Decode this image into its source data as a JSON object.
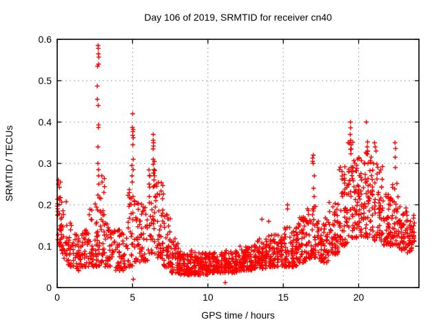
{
  "page": {
    "background": "#ffffff"
  },
  "chart_data": {
    "type": "scatter",
    "title": "Day 106 of 2019, SRMTID for receiver cn40",
    "xlabel": "GPS time / hours",
    "ylabel": "SRMTID / TECUs",
    "xlim": [
      0,
      24
    ],
    "ylim": [
      0,
      0.6
    ],
    "xticks": [
      {
        "v": 0,
        "label": "0"
      },
      {
        "v": 5,
        "label": "5"
      },
      {
        "v": 10,
        "label": "10"
      },
      {
        "v": 15,
        "label": "15"
      },
      {
        "v": 20,
        "label": "20"
      }
    ],
    "yticks": [
      {
        "v": 0,
        "label": "0"
      },
      {
        "v": 0.1,
        "label": "0.1"
      },
      {
        "v": 0.2,
        "label": "0.2"
      },
      {
        "v": 0.3,
        "label": "0.3"
      },
      {
        "v": 0.4,
        "label": "0.4"
      },
      {
        "v": 0.5,
        "label": "0.5"
      },
      {
        "v": 0.6,
        "label": "0.6"
      }
    ],
    "grid": true,
    "legend_position": "none",
    "marker": "plus",
    "marker_color": "#ff0000",
    "axis_color": "#000000",
    "grid_color": "#a6a6a6",
    "seed": 42,
    "envelope_bins": [
      [
        0.0,
        0.25,
        30,
        0.1,
        0.28,
        1.2
      ],
      [
        0.25,
        0.6,
        25,
        0.07,
        0.21,
        1.6
      ],
      [
        0.6,
        1.0,
        28,
        0.05,
        0.16,
        1.6
      ],
      [
        1.0,
        1.5,
        34,
        0.04,
        0.13,
        1.5
      ],
      [
        1.5,
        2.0,
        36,
        0.05,
        0.14,
        1.6
      ],
      [
        2.0,
        2.45,
        30,
        0.05,
        0.19,
        1.8
      ],
      [
        2.45,
        2.85,
        32,
        0.05,
        0.23,
        1.6
      ],
      [
        2.85,
        3.15,
        30,
        0.06,
        0.28,
        1.5
      ],
      [
        3.15,
        3.7,
        34,
        0.05,
        0.16,
        1.5
      ],
      [
        3.7,
        4.2,
        32,
        0.04,
        0.14,
        1.6
      ],
      [
        4.2,
        4.65,
        28,
        0.04,
        0.15,
        1.7
      ],
      [
        4.65,
        5.05,
        30,
        0.05,
        0.24,
        1.7
      ],
      [
        5.05,
        5.55,
        34,
        0.06,
        0.22,
        1.7
      ],
      [
        5.55,
        6.05,
        34,
        0.06,
        0.21,
        1.6
      ],
      [
        6.05,
        6.55,
        40,
        0.08,
        0.3,
        1.4
      ],
      [
        6.55,
        7.05,
        42,
        0.07,
        0.26,
        1.5
      ],
      [
        7.05,
        7.55,
        42,
        0.05,
        0.18,
        1.6
      ],
      [
        7.55,
        8.05,
        44,
        0.035,
        0.12,
        1.5
      ],
      [
        8.05,
        9.0,
        85,
        0.03,
        0.09,
        1.4
      ],
      [
        9.0,
        10.0,
        90,
        0.03,
        0.085,
        1.3
      ],
      [
        10.0,
        11.0,
        90,
        0.035,
        0.085,
        1.3
      ],
      [
        11.0,
        12.0,
        90,
        0.035,
        0.09,
        1.3
      ],
      [
        12.0,
        13.0,
        90,
        0.04,
        0.1,
        1.4
      ],
      [
        13.0,
        14.0,
        88,
        0.045,
        0.12,
        1.5
      ],
      [
        14.0,
        15.0,
        88,
        0.05,
        0.13,
        1.5
      ],
      [
        15.0,
        16.0,
        85,
        0.05,
        0.15,
        1.6
      ],
      [
        16.0,
        16.6,
        50,
        0.06,
        0.17,
        1.6
      ],
      [
        16.6,
        17.2,
        50,
        0.07,
        0.2,
        1.5
      ],
      [
        17.2,
        18.0,
        65,
        0.06,
        0.17,
        1.4
      ],
      [
        18.0,
        18.7,
        58,
        0.08,
        0.21,
        1.4
      ],
      [
        18.7,
        19.3,
        55,
        0.1,
        0.3,
        1.3
      ],
      [
        19.3,
        19.8,
        48,
        0.12,
        0.36,
        1.2
      ],
      [
        19.8,
        20.4,
        58,
        0.12,
        0.32,
        1.3
      ],
      [
        20.4,
        21.0,
        58,
        0.12,
        0.33,
        1.3
      ],
      [
        21.0,
        21.6,
        54,
        0.11,
        0.3,
        1.4
      ],
      [
        21.6,
        22.2,
        52,
        0.1,
        0.23,
        1.4
      ],
      [
        22.2,
        22.65,
        40,
        0.1,
        0.26,
        1.4
      ],
      [
        22.65,
        23.2,
        48,
        0.09,
        0.2,
        1.4
      ],
      [
        23.2,
        23.75,
        44,
        0.08,
        0.18,
        1.3
      ]
    ],
    "spike_columns": [
      [
        2.72,
        [
          0.585,
          0.578,
          0.565,
          0.557,
          0.54,
          0.535,
          0.487,
          0.455,
          0.44,
          0.393,
          0.387,
          0.34,
          0.3,
          0.285,
          0.27,
          0.25
        ]
      ],
      [
        5.0,
        [
          0.42,
          0.387,
          0.382,
          0.377,
          0.368,
          0.362,
          0.345,
          0.31,
          0.295,
          0.285,
          0.27,
          0.255,
          0.22
        ]
      ],
      [
        6.42,
        [
          0.37,
          0.356,
          0.35,
          0.342,
          0.335,
          0.31,
          0.305,
          0.298,
          0.285,
          0.27,
          0.26,
          0.245
        ]
      ],
      [
        3.0,
        [
          0.27
        ]
      ],
      [
        13.6,
        [
          0.165
        ]
      ],
      [
        14.05,
        [
          0.16
        ]
      ],
      [
        15.3,
        [
          0.2,
          0.19
        ]
      ],
      [
        16.35,
        [
          0.17,
          0.16
        ]
      ],
      [
        17.0,
        [
          0.32,
          0.313,
          0.305,
          0.3,
          0.27,
          0.24,
          0.22,
          0.19
        ]
      ],
      [
        19.45,
        [
          0.4,
          0.386,
          0.37,
          0.356,
          0.345,
          0.335
        ]
      ],
      [
        20.55,
        [
          0.4,
          0.352,
          0.34,
          0.33
        ]
      ],
      [
        21.1,
        [
          0.35,
          0.34,
          0.33
        ]
      ],
      [
        22.4,
        [
          0.35,
          0.336,
          0.315,
          0.29
        ]
      ]
    ],
    "outliers": [
      [
        5.05,
        0.02
      ],
      [
        11.15,
        0.012
      ]
    ]
  }
}
